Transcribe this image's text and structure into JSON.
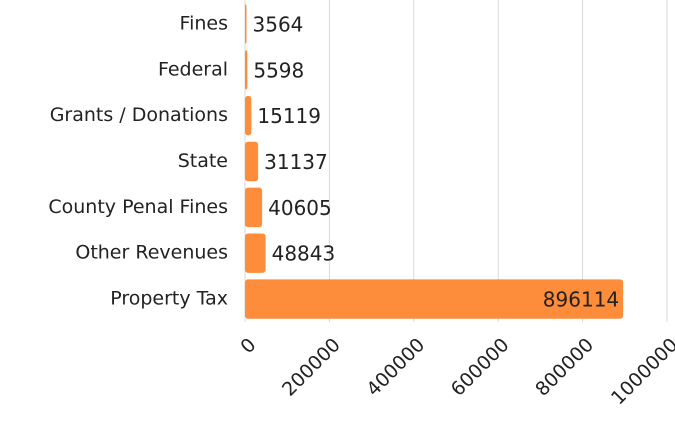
{
  "chart_data": {
    "type": "hbar",
    "categories": [
      "Fines",
      "Federal",
      "Grants / Donations",
      "State",
      "County Penal Fines",
      "Other Revenues",
      "Property Tax"
    ],
    "values": [
      3564,
      5598,
      15119,
      31137,
      40605,
      48843,
      896114
    ],
    "color": "#fd8c3b",
    "xlim": [
      0,
      1000000
    ],
    "xticks": [
      0,
      200000,
      400000,
      600000,
      800000,
      1000000
    ],
    "grid": true
  }
}
